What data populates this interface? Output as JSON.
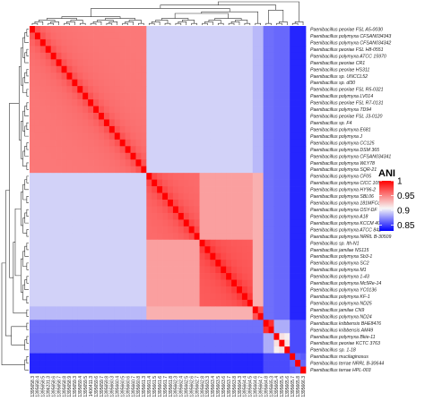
{
  "chart_data": {
    "type": "heatmap",
    "title": "",
    "colorbar": {
      "title": "ANI",
      "ticks": [
        1,
        0.95,
        0.9,
        0.85
      ],
      "range": [
        0.83,
        1.0
      ],
      "colors": {
        "high": "#ff0000",
        "mid": "#f7f7f7",
        "low": "#0000ff"
      }
    },
    "row_labels": [
      "Paenibacillus peoriae FSL A5-0030",
      "Paenibacillus polymyxa CFSAN034343",
      "Paenibacillus polymyxa CFSAN034342",
      "Paenibacillus peoriae FSL H8-0551",
      "Paenibacillus polymyxa ATCC 15970",
      "Paenibacillus peoriae CR1",
      "Paenibacillus peoriae HS311",
      "Paenibacillus sp. UNCCL52",
      "Paenibacillus sp. dl30",
      "Paenibacillus peoriae FSL R5-0321",
      "Paenibacillus polymyxa LV014",
      "Paenibacillus peoriae FSL R7-0131",
      "Paenibacillus polymyxa TD94",
      "Paenibacillus peoriae FSL J3-0120",
      "Paenibacillus sp. F4",
      "Paenibacillus polymyxa E681",
      "Paenibacillus polymyxa J",
      "Paenibacillus polymyxa CC125",
      "Paenibacillus polymyxa DSM 365",
      "Paenibacillus polymyxa CFSAN034341",
      "Paenibacillus polymyxa WLY78",
      "Paenibacillus polymyxa SQR-21",
      "Paenibacillus polymyxa CF05",
      "Paenibacillus polymyxa CICC 10580",
      "Paenibacillus polymyxa HY96-2",
      "Paenibacillus polymyxa SBL06",
      "Paenibacillus polymyxa 181MFCo8.1",
      "Paenibacillus polymyxa OSY-DF",
      "Paenibacillus polymyxa A18",
      "Paenibacillus polymyxa KCCM 40454",
      "Paenibacillus polymyxa ATCC 842",
      "Paenibacillus polymyxa NRRL B-30509",
      "Paenibacillus sp. Ith-N1",
      "Paenibacillus jamilae NS115",
      "Paenibacillus polymyxa Sb3-1",
      "Paenibacillus polymyxa SC2",
      "Paenibacillus polymyxa M1",
      "Paenibacillus polymyxa 1-43",
      "Paenibacillus polymyxa Mc5Re-14",
      "Paenibacillus polymyxa YC0136",
      "Paenibacillus polymyxa KF-1",
      "Paenibacillus polymyxa ND25",
      "Paenibacillus jamilae CN9",
      "Paenibacillus polymyxa ND24",
      "Paenibacillus kribbensis BHE8476",
      "Paenibacillus kribbensis AM49",
      "Paenibacillus polymyxa Bkie-11",
      "Paenibacillus peoriae KCTC 3763",
      "Paenibacillus sp. 1-18",
      "Paenibacillus mucilaginosus",
      "Paenibacillus terrae NRRL B-30644",
      "Paenibacillus terrae HPL-003"
    ],
    "column_labels": [
      "1395658.3",
      "1395658.4",
      "1395658.5",
      "1396231.3",
      "1395658.6",
      "1395658.7",
      "1395658.8",
      "1395658.9",
      "1395659.3",
      "1395659.4",
      "1395659.5",
      "1406411.3",
      "1395659.6",
      "1395659.7",
      "1395659.8",
      "1395660.3",
      "1395660.4",
      "1395660.5",
      "1395660.6",
      "1395660.7",
      "1395660.8",
      "1395661.3",
      "1395661.4",
      "1395661.5",
      "1395661.6",
      "1395661.7",
      "1395661.8",
      "1395662.3",
      "1395662.4",
      "1395662.5",
      "1395662.6",
      "1395662.7",
      "1395662.8",
      "1395663.3",
      "1395663.4",
      "1395663.5",
      "1395663.6",
      "1395663.7",
      "1395663.8",
      "1395664.3",
      "1395664.4",
      "1395664.5",
      "1395664.6",
      "1395664.7",
      "1395664.8",
      "1395665.3",
      "1395665.4",
      "1395665.5",
      "1395665.6",
      "1395665.7",
      "1395665.8",
      "1395666.3"
    ],
    "clusters": [
      {
        "members": [
          0,
          21
        ],
        "within": 0.965,
        "name": ""
      },
      {
        "members": [
          22,
          31
        ],
        "within": 0.968,
        "name": ""
      },
      {
        "members": [
          32,
          41
        ],
        "within": 0.972,
        "name": ""
      },
      {
        "members": [
          42,
          43
        ],
        "within": 0.965,
        "name": ""
      },
      {
        "members": [
          44,
          45
        ],
        "within": 0.975,
        "name": ""
      },
      {
        "members": [
          46,
          48
        ],
        "within": 0.925,
        "name": ""
      },
      {
        "members": [
          49,
          51
        ],
        "within": 0.86,
        "name": ""
      }
    ],
    "between_clusters": [
      {
        "a": 0,
        "b": 1,
        "value": 0.915
      },
      {
        "a": 0,
        "b": 2,
        "value": 0.915
      },
      {
        "a": 1,
        "b": 2,
        "value": 0.955
      },
      {
        "a": 0,
        "b": 3,
        "value": 0.905
      },
      {
        "a": 1,
        "b": 3,
        "value": 0.95
      },
      {
        "a": 2,
        "b": 3,
        "value": 0.95
      },
      {
        "a": 0,
        "b": 4,
        "value": 0.875
      },
      {
        "a": 1,
        "b": 4,
        "value": 0.875
      },
      {
        "a": 2,
        "b": 4,
        "value": 0.875
      },
      {
        "a": 3,
        "b": 4,
        "value": 0.875
      },
      {
        "a": 0,
        "b": 5,
        "value": 0.872
      },
      {
        "a": 1,
        "b": 5,
        "value": 0.872
      },
      {
        "a": 2,
        "b": 5,
        "value": 0.872
      },
      {
        "a": 3,
        "b": 5,
        "value": 0.872
      },
      {
        "a": 4,
        "b": 5,
        "value": 0.9
      },
      {
        "a": 0,
        "b": 6,
        "value": 0.845
      },
      {
        "a": 1,
        "b": 6,
        "value": 0.845
      },
      {
        "a": 2,
        "b": 6,
        "value": 0.845
      },
      {
        "a": 3,
        "b": 6,
        "value": 0.845
      },
      {
        "a": 4,
        "b": 6,
        "value": 0.86
      },
      {
        "a": 5,
        "b": 6,
        "value": 0.86
      }
    ],
    "diagonal": 1.0
  }
}
